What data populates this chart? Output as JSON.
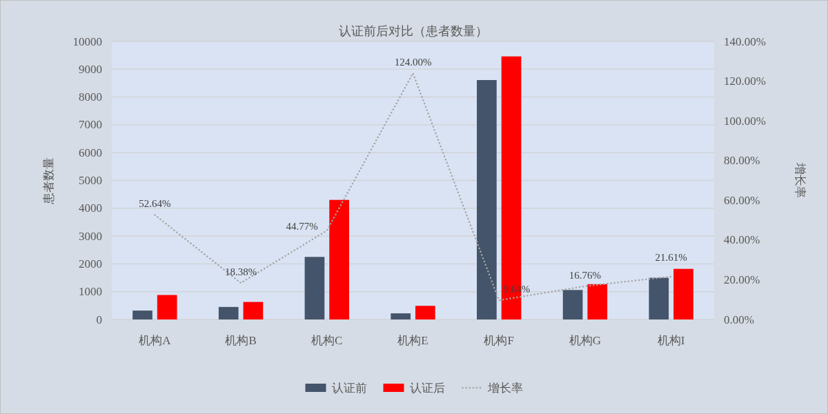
{
  "chart_data": {
    "type": "bar",
    "title": "认证前后对比（患者数量）",
    "ylabel": "患者数量",
    "y2label": "增长率",
    "categories": [
      "机构A",
      "机构B",
      "机构C",
      "机构E",
      "机构F",
      "机构G",
      "机构I"
    ],
    "series": [
      {
        "name": "认证前",
        "color": "#44546a",
        "values": [
          320,
          450,
          2250,
          220,
          8610,
          1060,
          1500
        ]
      },
      {
        "name": "认证后",
        "color": "#ff0000",
        "values": [
          880,
          630,
          4300,
          490,
          9460,
          1270,
          1820
        ]
      },
      {
        "name": "增长率",
        "color": "#a5a5a5",
        "type": "line",
        "axis": "y2",
        "line_style": "dotted",
        "values": [
          52.64,
          18.38,
          44.77,
          124.0,
          9.64,
          16.76,
          21.61
        ],
        "value_labels": [
          "52.64%",
          "18.38%",
          "44.77%",
          "124.00%",
          "9.64%",
          "16.76%",
          "21.61%"
        ]
      }
    ],
    "ylim": [
      0,
      10000
    ],
    "yticks": [
      0,
      1000,
      2000,
      3000,
      4000,
      5000,
      6000,
      7000,
      8000,
      9000,
      10000
    ],
    "y2lim": [
      0,
      140
    ],
    "y2ticks": [
      {
        "value": 0,
        "label": "0.00%"
      },
      {
        "value": 20,
        "label": "20.00%"
      },
      {
        "value": 40,
        "label": "40.00%"
      },
      {
        "value": 60,
        "label": "60.00%"
      },
      {
        "value": 80,
        "label": "80.00%"
      },
      {
        "value": 100,
        "label": "100.00%"
      },
      {
        "value": 120,
        "label": "120.00%"
      },
      {
        "value": 140,
        "label": "140.00%"
      }
    ],
    "grid": "y",
    "legend": "bottom"
  }
}
